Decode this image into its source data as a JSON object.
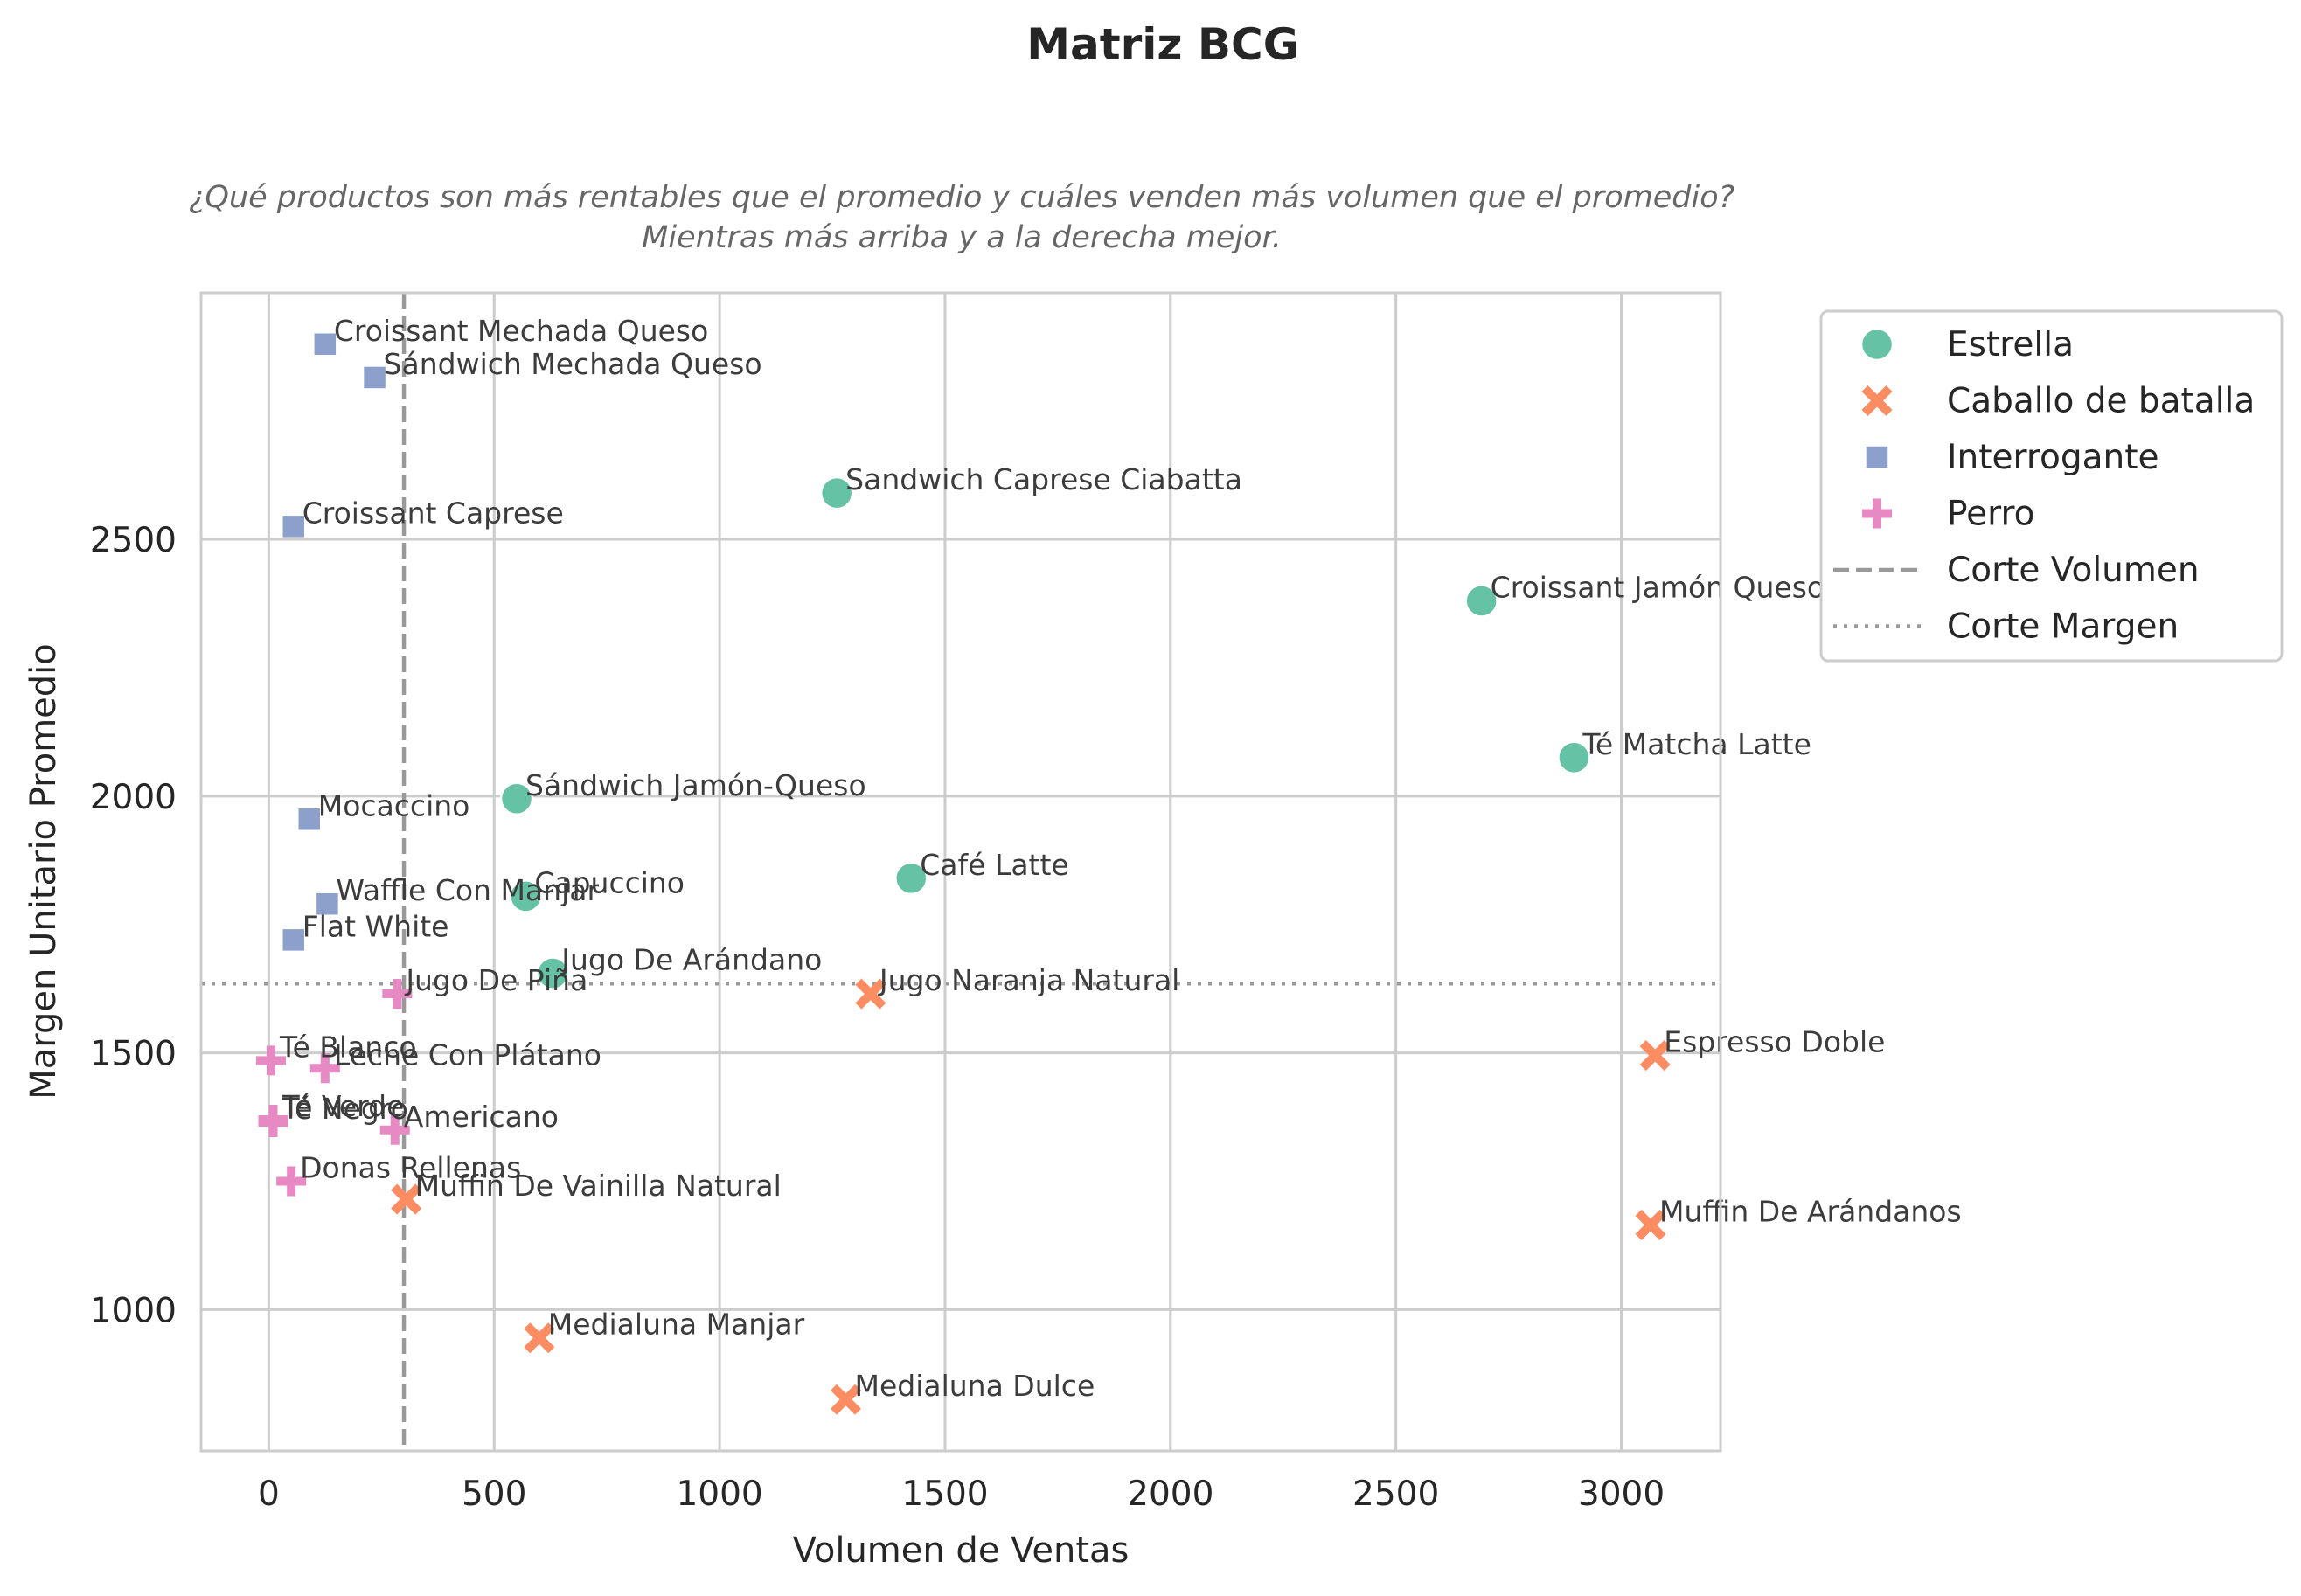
{
  "chart_data": {
    "type": "scatter",
    "title": "Matriz BCG",
    "subtitle_lines": [
      "¿Qué productos son más rentables que el promedio y cuáles venden más volumen que el promedio?",
      "Mientras más arriba y a la derecha mejor."
    ],
    "xlabel": "Volumen de Ventas",
    "ylabel": "Margen Unitario Promedio",
    "xlim": [
      -150,
      3220
    ],
    "ylim": [
      725,
      2980
    ],
    "xticks": [
      0,
      500,
      1000,
      1500,
      2000,
      2500,
      3000
    ],
    "yticks": [
      1000,
      1500,
      2000,
      2500
    ],
    "grid": true,
    "legend_position": "outside right, top",
    "cut_volume": 300,
    "cut_margin": 1635,
    "series": [
      {
        "name": "Estrella",
        "marker": "circle",
        "color": "#66c2a5",
        "points": [
          {
            "label": "Sandwich Caprese Ciabatta",
            "x": 1260,
            "y": 2590
          },
          {
            "label": "Croissant Jamón Queso",
            "x": 2690,
            "y": 2380
          },
          {
            "label": "Té Matcha Latte",
            "x": 2895,
            "y": 2075
          },
          {
            "label": "Sándwich Jamón-Queso",
            "x": 550,
            "y": 1995
          },
          {
            "label": "Café Latte",
            "x": 1425,
            "y": 1840
          },
          {
            "label": "Capuccino",
            "x": 570,
            "y": 1805
          },
          {
            "label": "Jugo De Arándano",
            "x": 630,
            "y": 1655
          }
        ]
      },
      {
        "name": "Caballo de batalla",
        "marker": "x",
        "color": "#fc8d62",
        "points": [
          {
            "label": "Jugo Naranja Natural",
            "x": 1335,
            "y": 1615
          },
          {
            "label": "Espresso Doble",
            "x": 3075,
            "y": 1495
          },
          {
            "label": "Muffin De Vainilla Natural",
            "x": 305,
            "y": 1215
          },
          {
            "label": "Muffin De Arándanos",
            "x": 3065,
            "y": 1165
          },
          {
            "label": "Medialuna Manjar",
            "x": 600,
            "y": 945
          },
          {
            "label": "Medialuna Dulce",
            "x": 1280,
            "y": 825
          }
        ]
      },
      {
        "name": "Interrogante",
        "marker": "square",
        "color": "#8da0cb",
        "points": [
          {
            "label": "Croissant Mechada Queso",
            "x": 125,
            "y": 2880
          },
          {
            "label": "Sándwich Mechada Queso",
            "x": 235,
            "y": 2815
          },
          {
            "label": "Croissant Caprese",
            "x": 55,
            "y": 2525
          },
          {
            "label": "Mocaccino",
            "x": 90,
            "y": 1955
          },
          {
            "label": "Waffle Con Manjar",
            "x": 130,
            "y": 1790
          },
          {
            "label": "Flat White",
            "x": 55,
            "y": 1720
          }
        ]
      },
      {
        "name": "Perro",
        "marker": "plus",
        "color": "#e78ac3",
        "points": [
          {
            "label": "Jugo De Piña",
            "x": 285,
            "y": 1615
          },
          {
            "label": "Té Blanco",
            "x": 5,
            "y": 1485
          },
          {
            "label": "Leche Con Plátano",
            "x": 125,
            "y": 1470
          },
          {
            "label": "Té Verde",
            "x": 10,
            "y": 1370
          },
          {
            "label": "Té Negro",
            "x": 10,
            "y": 1365
          },
          {
            "label": "Americano",
            "x": 280,
            "y": 1350
          },
          {
            "label": "Donas Rellenas",
            "x": 50,
            "y": 1250
          }
        ]
      }
    ],
    "cut_lines": [
      {
        "name": "Corte Volumen",
        "style": "dashed",
        "color": "#999999"
      },
      {
        "name": "Corte Margen",
        "style": "dotted",
        "color": "#999999"
      }
    ]
  }
}
